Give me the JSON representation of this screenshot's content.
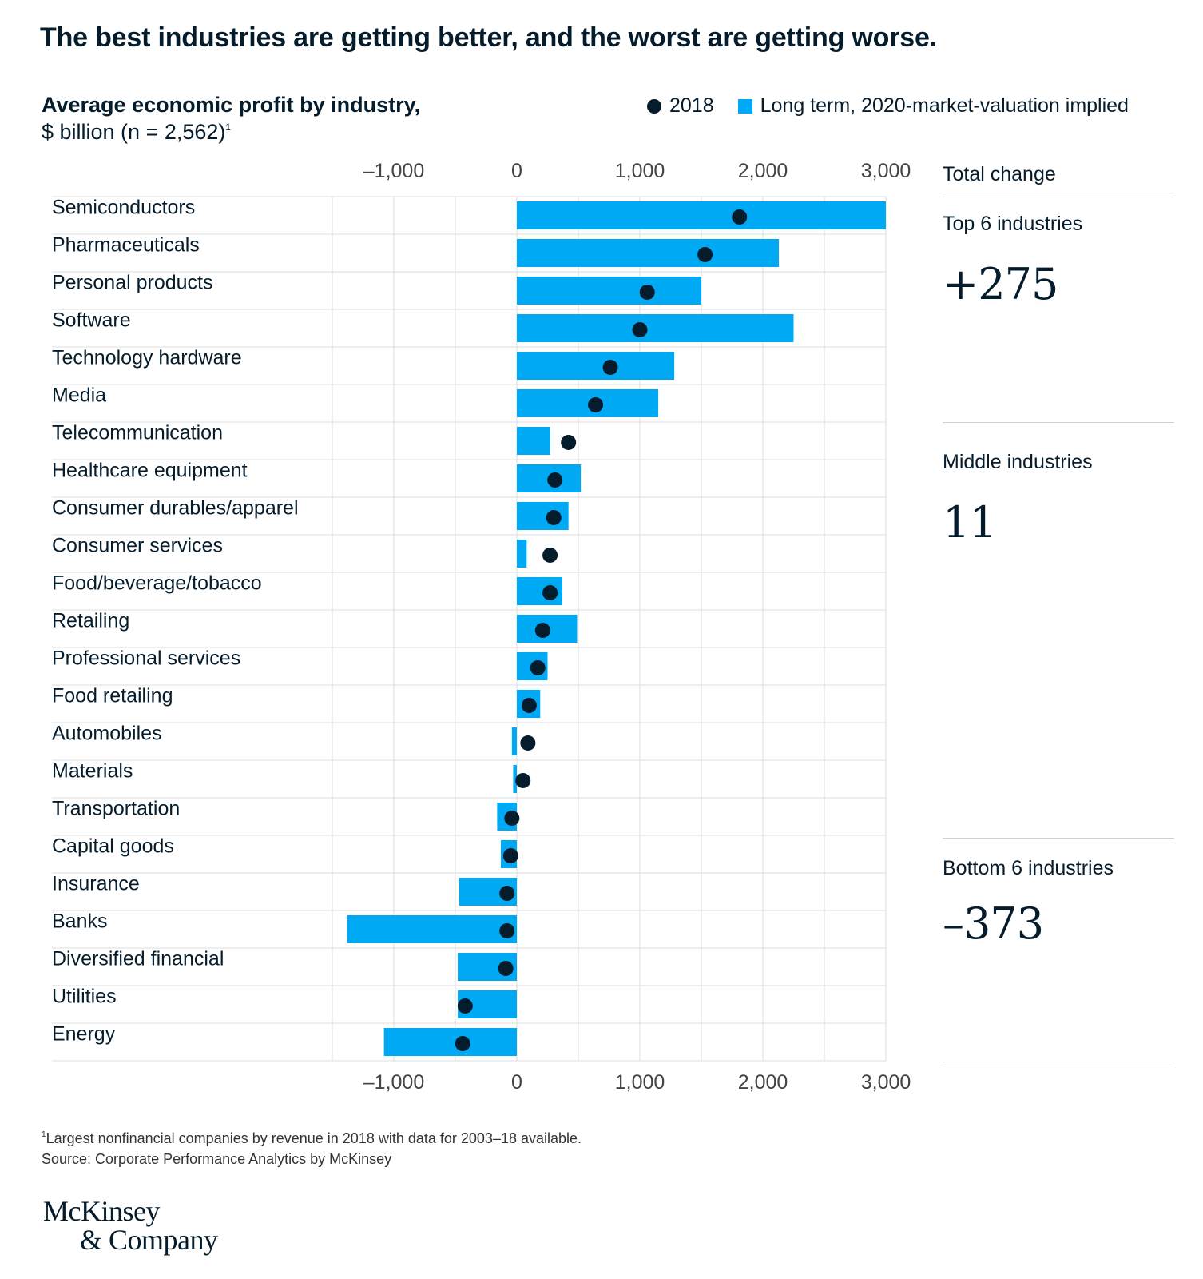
{
  "title": "The best industries are getting better, and the worst are getting worse.",
  "subtitle_bold": "Average economic profit by industry,",
  "subtitle_light": "$ billion (n = 2,562)",
  "subtitle_footnote_mark": "1",
  "legend": {
    "dot_label": "2018",
    "bar_label": "Long term, 2020-market-valuation implied"
  },
  "side": {
    "header": "Total change",
    "groups": [
      {
        "label": "Top 6 industries",
        "value": "+275"
      },
      {
        "label": "Middle industries",
        "value": "11"
      },
      {
        "label": "Bottom 6 industries",
        "value": "–373"
      }
    ]
  },
  "footnote_mark": "1",
  "footnote": "Largest nonfinancial companies by revenue in 2018 with data for 2003–18 available.",
  "source": "Source: Corporate Performance Analytics by McKinsey",
  "logo": {
    "line1": "McKinsey",
    "line2": "& Company"
  },
  "colors": {
    "bar": "#00a9f4",
    "dot": "#051c2c",
    "grid": "#dcdcdc",
    "text": "#051c2c"
  },
  "chart_data": {
    "type": "bar",
    "orientation": "horizontal",
    "xlim": [
      -1500,
      3000
    ],
    "xticks": [
      -1000,
      0,
      1000,
      2000,
      3000
    ],
    "xtick_labels": [
      "–1,000",
      "0",
      "1,000",
      "2,000",
      "3,000"
    ],
    "grid": true,
    "legend_position": "top-right",
    "categories": [
      "Semiconductors",
      "Pharmaceuticals",
      "Personal products",
      "Software",
      "Technology hardware",
      "Media",
      "Telecommunication",
      "Healthcare equipment",
      "Consumer durables/apparel",
      "Consumer services",
      "Food/beverage/tobacco",
      "Retailing",
      "Professional services",
      "Food retailing",
      "Automobiles",
      "Materials",
      "Transportation",
      "Capital goods",
      "Insurance",
      "Banks",
      "Diversified financial",
      "Utilities",
      "Energy"
    ],
    "series": [
      {
        "name": "Long term, 2020-market-valuation implied",
        "values": [
          3000,
          2130,
          1500,
          2250,
          1280,
          1150,
          270,
          520,
          420,
          80,
          370,
          490,
          250,
          190,
          -40,
          -30,
          -160,
          -130,
          -470,
          -1380,
          -480,
          -480,
          -1080
        ]
      },
      {
        "name": "2018",
        "values": [
          1810,
          1530,
          1060,
          1000,
          760,
          640,
          420,
          310,
          300,
          270,
          270,
          210,
          170,
          100,
          90,
          50,
          -40,
          -50,
          -80,
          -80,
          -90,
          -420,
          -440
        ]
      }
    ]
  }
}
